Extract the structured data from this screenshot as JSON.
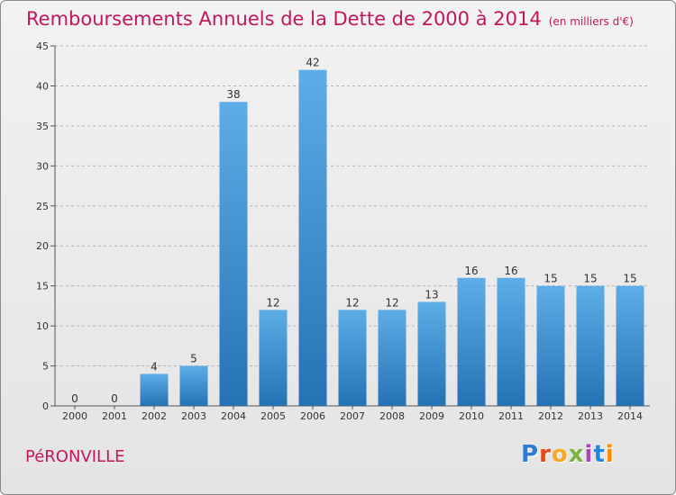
{
  "header": {
    "title": "Remboursements Annuels de la Dette de 2000 à 2014",
    "subtitle": "(en milliers d'€)"
  },
  "footer": {
    "commune": "PéRONVILLE",
    "logo_letters": [
      "P",
      "r",
      "o",
      "x",
      "i",
      "t",
      "i"
    ],
    "logo_colors": [
      "#2e7bcf",
      "#e64a19",
      "#f9a825",
      "#7cb342",
      "#ab47bc",
      "#1e88e5",
      "#fb8c00"
    ]
  },
  "colors": {
    "title": "#c2185b",
    "bar_top": "#5dade8",
    "bar_bottom": "#2572b4",
    "grid": "#b5b5b5"
  },
  "chart_data": {
    "type": "bar",
    "categories": [
      "2000",
      "2001",
      "2002",
      "2003",
      "2004",
      "2005",
      "2006",
      "2007",
      "2008",
      "2009",
      "2010",
      "2011",
      "2012",
      "2013",
      "2014"
    ],
    "values": [
      0,
      0,
      4,
      5,
      38,
      12,
      42,
      12,
      12,
      13,
      16,
      16,
      15,
      15,
      15
    ],
    "ylim": [
      0,
      45
    ],
    "yticks": [
      0,
      5,
      10,
      15,
      20,
      25,
      30,
      35,
      40,
      45
    ],
    "grid": true,
    "grid_style": "dashed horizontal",
    "data_labels": true
  }
}
